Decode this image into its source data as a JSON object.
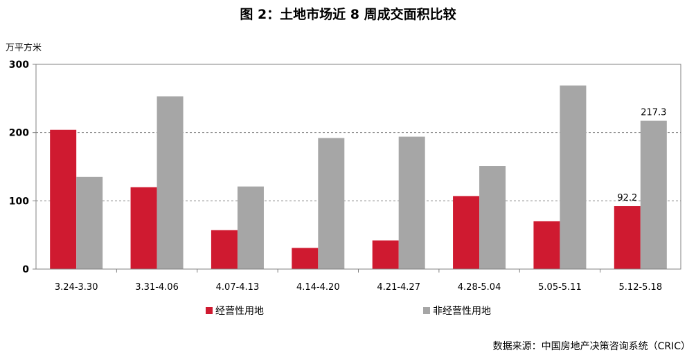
{
  "title": "图 2：土地市场近 8 周成交面积比较",
  "unit": "万平方米",
  "source": "数据来源：中国房地产决策咨询系统（CRIC）",
  "colors": {
    "operating": "#CF1A30",
    "non_operating": "#A6A6A6"
  },
  "chart_data": {
    "type": "bar",
    "categories": [
      "3.24-3.30",
      "3.31-4.06",
      "4.07-4.13",
      "4.14-4.20",
      "4.21-4.27",
      "4.28-5.04",
      "5.05-5.11",
      "5.12-5.18"
    ],
    "series": [
      {
        "name": "经营性用地",
        "values": [
          204,
          120,
          57,
          31,
          42,
          107,
          70,
          92.2
        ]
      },
      {
        "name": "非经营性用地",
        "values": [
          135,
          253,
          121,
          192,
          194,
          151,
          269,
          217.3
        ]
      }
    ],
    "data_labels": [
      {
        "series": 0,
        "index": 7,
        "text": "92.2"
      },
      {
        "series": 1,
        "index": 7,
        "text": "217.3"
      }
    ],
    "ylim": [
      0,
      300
    ],
    "yticks": [
      "0",
      "100",
      "200",
      "300"
    ],
    "ylabel": "万平方米",
    "xlabel": "",
    "grid": true,
    "legend": "bottom"
  }
}
